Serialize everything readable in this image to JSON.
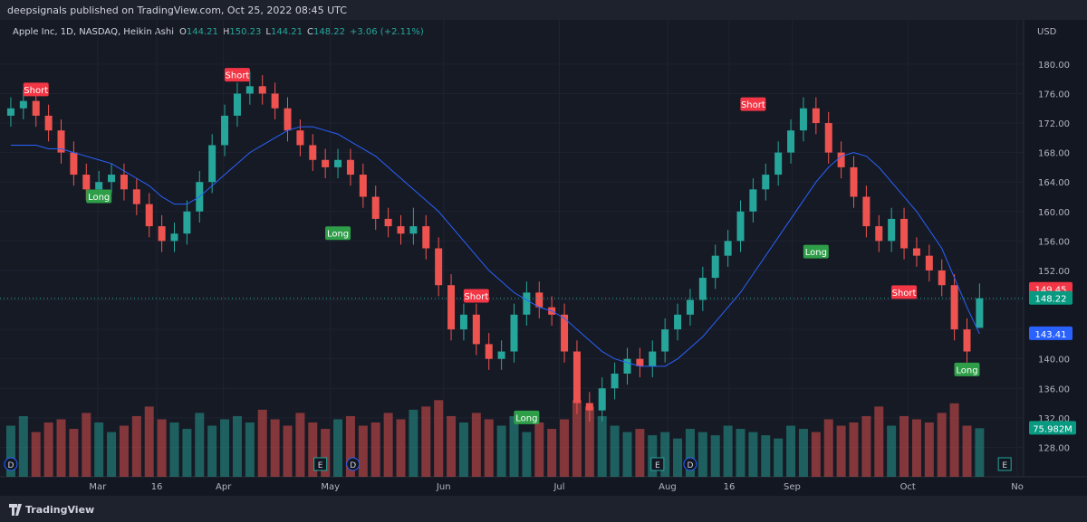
{
  "header": {
    "publisher": "deepsignals published on TradingView.com, Oct 25, 2022 08:45 UTC",
    "brand": "TradingView"
  },
  "chart_data": {
    "type": "candlestick",
    "symbol": "Apple Inc, 1D, NASDAQ, Heikin Ashi",
    "change": "+3.06 (+2.11%)",
    "currency": "USD",
    "ylim": [
      124,
      186
    ],
    "yticks": [
      {
        "value": 128,
        "label": "128.00"
      },
      {
        "value": 132,
        "label": "132.00"
      },
      {
        "value": 136,
        "label": "136.00"
      },
      {
        "value": 140,
        "label": "140.00"
      },
      {
        "value": 144,
        "label": "144.00"
      },
      {
        "value": 148,
        "label": "148.00"
      },
      {
        "value": 152,
        "label": "152.00"
      },
      {
        "value": 156,
        "label": "156.00"
      },
      {
        "value": 160,
        "label": "160.00"
      },
      {
        "value": 164,
        "label": "164.00"
      },
      {
        "value": 168,
        "label": "168.00"
      },
      {
        "value": 172,
        "label": "172.00"
      },
      {
        "value": 176,
        "label": "176.00"
      },
      {
        "value": 180,
        "label": "180.00"
      }
    ],
    "xlim": [
      -0.86,
      80.5
    ],
    "xticks": [
      {
        "value": 6.9,
        "label": "Mar"
      },
      {
        "value": 11.6,
        "label": "16"
      },
      {
        "value": 16.9,
        "label": "Apr"
      },
      {
        "value": 25.4,
        "label": "May"
      },
      {
        "value": 34.4,
        "label": "Jun"
      },
      {
        "value": 43.6,
        "label": "Jul"
      },
      {
        "value": 52.2,
        "label": "Aug"
      },
      {
        "value": 57.1,
        "label": "16"
      },
      {
        "value": 62.1,
        "label": "Sep"
      },
      {
        "value": 71.3,
        "label": "Oct"
      },
      {
        "value": 80,
        "label": "No"
      }
    ],
    "up_color": "#26a69a",
    "down_color": "#ef5350",
    "ma_color": "#2962ff",
    "candles": [
      [
        173,
        175.5,
        171.5,
        174
      ],
      [
        174,
        176.5,
        172.5,
        175
      ],
      [
        175,
        176.5,
        171.5,
        173
      ],
      [
        173,
        174.5,
        169.5,
        171
      ],
      [
        171,
        172.5,
        166.5,
        168
      ],
      [
        168,
        169.5,
        163.5,
        165
      ],
      [
        165,
        166.5,
        161.5,
        163
      ],
      [
        163,
        165.5,
        161.5,
        164
      ],
      [
        164,
        166.5,
        162.5,
        165
      ],
      [
        165,
        166.5,
        161.5,
        163
      ],
      [
        163,
        164.5,
        159.5,
        161
      ],
      [
        161,
        162.5,
        156.5,
        158
      ],
      [
        158,
        159.5,
        154.5,
        156
      ],
      [
        156,
        158.5,
        154.5,
        157
      ],
      [
        157,
        161.5,
        155.5,
        160
      ],
      [
        160,
        165.5,
        158.5,
        164
      ],
      [
        164,
        170.5,
        162.5,
        169
      ],
      [
        169,
        174.5,
        167.5,
        173
      ],
      [
        173,
        177.5,
        171.5,
        176
      ],
      [
        176,
        179,
        174.5,
        177
      ],
      [
        177,
        178.5,
        174.5,
        176
      ],
      [
        176,
        177.5,
        172.5,
        174
      ],
      [
        174,
        175.5,
        169.5,
        171
      ],
      [
        171,
        172.5,
        167.5,
        169
      ],
      [
        169,
        170.5,
        165.5,
        167
      ],
      [
        167,
        168.5,
        164.5,
        166
      ],
      [
        166,
        168.5,
        164.5,
        167
      ],
      [
        167,
        168.5,
        163.5,
        165
      ],
      [
        165,
        166.5,
        160.5,
        162
      ],
      [
        162,
        163.5,
        157.5,
        159
      ],
      [
        159,
        160.5,
        156.5,
        158
      ],
      [
        158,
        159.5,
        155.5,
        157
      ],
      [
        157,
        160.5,
        155.5,
        158
      ],
      [
        158,
        159.5,
        153.5,
        155
      ],
      [
        155,
        156.5,
        148.5,
        150
      ],
      [
        150,
        151.5,
        142.5,
        144
      ],
      [
        144,
        147.5,
        142.5,
        146
      ],
      [
        146,
        147.5,
        140.5,
        142
      ],
      [
        142,
        143.5,
        138.5,
        140
      ],
      [
        140,
        142.5,
        138.5,
        141
      ],
      [
        141,
        147.5,
        139.5,
        146
      ],
      [
        146,
        150.5,
        144.5,
        149
      ],
      [
        149,
        150.5,
        145.5,
        147
      ],
      [
        147,
        148.5,
        144.5,
        146
      ],
      [
        146,
        147.5,
        139.5,
        141
      ],
      [
        141,
        142.5,
        132.5,
        134
      ],
      [
        134,
        135.5,
        131.5,
        133
      ],
      [
        133,
        137.5,
        131.5,
        136
      ],
      [
        136,
        139.5,
        134.5,
        138
      ],
      [
        138,
        141.5,
        136.5,
        140
      ],
      [
        140,
        141.5,
        137.5,
        139
      ],
      [
        139,
        142.5,
        137.5,
        141
      ],
      [
        141,
        145.5,
        139.5,
        144
      ],
      [
        144,
        147.5,
        142.5,
        146
      ],
      [
        146,
        149.5,
        144.5,
        148
      ],
      [
        148,
        152.5,
        146.5,
        151
      ],
      [
        151,
        155.5,
        149.5,
        154
      ],
      [
        154,
        157.5,
        152.5,
        156
      ],
      [
        156,
        161.5,
        154.5,
        160
      ],
      [
        160,
        164.5,
        158.5,
        163
      ],
      [
        163,
        166.5,
        161.5,
        165
      ],
      [
        165,
        169.5,
        163.5,
        168
      ],
      [
        168,
        172.5,
        166.5,
        171
      ],
      [
        171,
        175.5,
        169.5,
        174
      ],
      [
        174,
        175.5,
        170.5,
        172
      ],
      [
        172,
        173.5,
        166.5,
        168
      ],
      [
        168,
        169.5,
        164.5,
        166
      ],
      [
        166,
        167.5,
        160.5,
        162
      ],
      [
        162,
        163.5,
        156.5,
        158
      ],
      [
        158,
        159.5,
        154.5,
        156
      ],
      [
        156,
        160.5,
        154.5,
        159
      ],
      [
        159,
        160.5,
        153.5,
        155
      ],
      [
        155,
        156.5,
        152.5,
        154
      ],
      [
        154,
        155.5,
        150.5,
        152
      ],
      [
        152,
        153.5,
        148.5,
        150
      ],
      [
        150,
        151.5,
        142.5,
        144
      ],
      [
        144,
        145.5,
        139.5,
        141
      ],
      [
        144.21,
        150.23,
        144.21,
        148.22
      ]
    ],
    "ma": [
      169,
      169,
      169,
      168.5,
      168.5,
      168,
      167.5,
      167,
      166.5,
      165.5,
      164.5,
      163.5,
      162,
      161,
      161,
      162,
      163.5,
      165,
      166.5,
      168,
      169,
      170,
      171,
      171.5,
      171.5,
      171,
      170.5,
      169.5,
      168.5,
      167.5,
      166,
      164.5,
      163,
      161.5,
      160,
      158,
      156,
      154,
      152,
      150.5,
      149,
      148,
      147,
      146.5,
      145.5,
      144,
      142.5,
      141,
      140,
      139.5,
      139,
      139,
      139,
      140,
      141.5,
      143,
      145,
      147,
      149,
      151.5,
      154,
      156.5,
      159,
      161.5,
      164,
      166,
      167.5,
      168,
      167.5,
      166,
      164,
      162,
      160,
      157.5,
      155,
      151,
      147,
      143.41
    ],
    "volume": [
      80,
      95,
      70,
      85,
      90,
      75,
      100,
      85,
      70,
      80,
      95,
      110,
      90,
      85,
      75,
      100,
      80,
      90,
      95,
      85,
      105,
      90,
      80,
      100,
      85,
      75,
      90,
      95,
      80,
      85,
      100,
      90,
      105,
      110,
      120,
      95,
      85,
      100,
      90,
      80,
      95,
      70,
      85,
      75,
      90,
      120,
      110,
      95,
      80,
      70,
      75,
      65,
      70,
      60,
      75,
      70,
      65,
      80,
      75,
      70,
      65,
      60,
      80,
      75,
      70,
      90,
      80,
      85,
      95,
      110,
      80,
      95,
      90,
      85,
      100,
      115,
      80,
      75.982
    ],
    "volume_label": "75.982M",
    "volume_lim": [
      0,
      170
    ],
    "last_price": 149.45,
    "signals": [
      {
        "label": "Short",
        "index": 2,
        "price": 176.5
      },
      {
        "label": "Long",
        "index": 7,
        "price": 162
      },
      {
        "label": "Short",
        "index": 18,
        "price": 178.5
      },
      {
        "label": "Long",
        "index": 26,
        "price": 157
      },
      {
        "label": "Short",
        "index": 37,
        "price": 148.5
      },
      {
        "label": "Long",
        "index": 41,
        "price": 132
      },
      {
        "label": "Short",
        "index": 59,
        "price": 174.5
      },
      {
        "label": "Long",
        "index": 64,
        "price": 154.5
      },
      {
        "label": "Short",
        "index": 71,
        "price": 149
      },
      {
        "label": "Long",
        "index": 76,
        "price": 138.5
      }
    ],
    "events": [
      {
        "label": "D",
        "index": 0
      },
      {
        "label": "E",
        "index": 24.6
      },
      {
        "label": "D",
        "index": 27.2
      },
      {
        "label": "E",
        "index": 51.4
      },
      {
        "label": "D",
        "index": 54
      },
      {
        "label": "E",
        "index": 79
      }
    ]
  }
}
